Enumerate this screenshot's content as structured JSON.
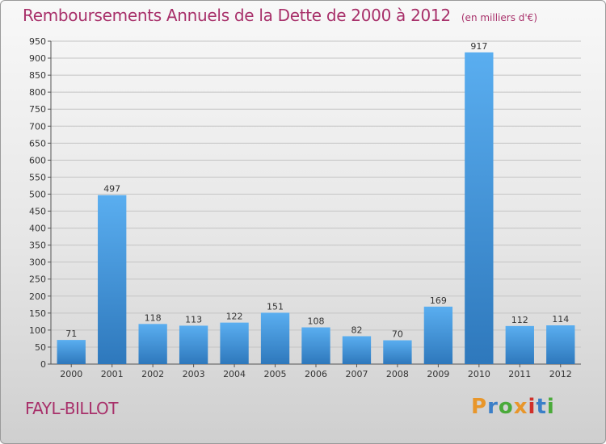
{
  "chart_data": {
    "type": "bar",
    "title": "Remboursements Annuels de la Dette de 2000 à 2012",
    "subtitle": "(en milliers d'€)",
    "categories": [
      "2000",
      "2001",
      "2002",
      "2003",
      "2004",
      "2005",
      "2006",
      "2007",
      "2008",
      "2009",
      "2010",
      "2011",
      "2012"
    ],
    "values": [
      71,
      497,
      118,
      113,
      122,
      151,
      108,
      82,
      70,
      169,
      917,
      112,
      114
    ],
    "ylim": [
      0,
      950
    ],
    "yticks": [
      0,
      50,
      100,
      150,
      200,
      250,
      300,
      350,
      400,
      450,
      500,
      550,
      600,
      650,
      700,
      750,
      800,
      850,
      900,
      950
    ],
    "grid": true,
    "bar_color": "#4a9ee0"
  },
  "footer": {
    "town": "FAYL-BILLOT",
    "logo_letters": [
      "P",
      "r",
      "o",
      "x",
      "i",
      "t",
      "i"
    ],
    "logo_colors": [
      "#e8962a",
      "#3a7fc8",
      "#4aaa3a",
      "#e8962a",
      "#d0302a",
      "#3a7fc8",
      "#4aaa3a"
    ]
  }
}
